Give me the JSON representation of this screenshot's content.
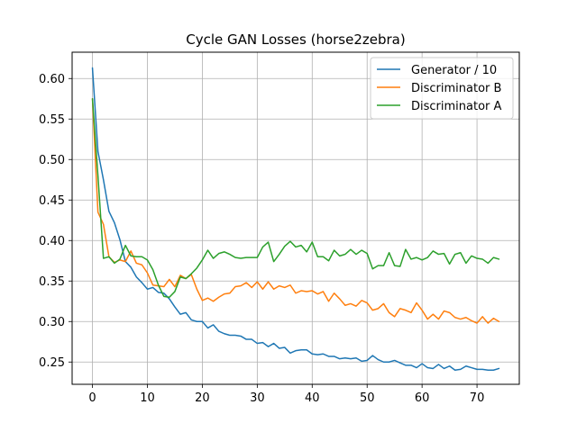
{
  "chart_data": {
    "type": "line",
    "title": "Cycle GAN Losses (horse2zebra)",
    "xlabel": "",
    "ylabel": "",
    "xlim": [
      -3.7,
      77.7
    ],
    "ylim": [
      0.2225,
      0.6325
    ],
    "xticks": [
      0,
      10,
      20,
      30,
      40,
      50,
      60,
      70
    ],
    "yticks": [
      0.25,
      0.3,
      0.35,
      0.4,
      0.45,
      0.5,
      0.55,
      0.6
    ],
    "ytick_labels": [
      "0.25",
      "0.30",
      "0.35",
      "0.40",
      "0.45",
      "0.50",
      "0.55",
      "0.60"
    ],
    "grid": true,
    "legend_position": "top-right",
    "series": [
      {
        "name": "Generator / 10",
        "color": "#1f77b4",
        "values": [
          0.613,
          0.51,
          0.475,
          0.436,
          0.422,
          0.401,
          0.374,
          0.367,
          0.355,
          0.348,
          0.34,
          0.342,
          0.336,
          0.335,
          0.328,
          0.318,
          0.309,
          0.311,
          0.302,
          0.3,
          0.3,
          0.292,
          0.296,
          0.288,
          0.285,
          0.283,
          0.283,
          0.282,
          0.278,
          0.278,
          0.273,
          0.274,
          0.269,
          0.273,
          0.267,
          0.268,
          0.261,
          0.264,
          0.265,
          0.265,
          0.26,
          0.259,
          0.26,
          0.257,
          0.257,
          0.254,
          0.255,
          0.254,
          0.255,
          0.251,
          0.252,
          0.258,
          0.253,
          0.25,
          0.25,
          0.252,
          0.249,
          0.246,
          0.246,
          0.243,
          0.248,
          0.243,
          0.242,
          0.247,
          0.242,
          0.245,
          0.24,
          0.241,
          0.245,
          0.243,
          0.241,
          0.241,
          0.24,
          0.24,
          0.242
        ]
      },
      {
        "name": "Discriminator B",
        "color": "#ff7f0e",
        "values": [
          0.575,
          0.435,
          0.42,
          0.38,
          0.373,
          0.376,
          0.374,
          0.387,
          0.372,
          0.37,
          0.36,
          0.345,
          0.344,
          0.343,
          0.352,
          0.343,
          0.357,
          0.353,
          0.358,
          0.34,
          0.326,
          0.329,
          0.325,
          0.33,
          0.334,
          0.335,
          0.343,
          0.344,
          0.348,
          0.342,
          0.349,
          0.34,
          0.349,
          0.34,
          0.344,
          0.342,
          0.345,
          0.335,
          0.338,
          0.337,
          0.338,
          0.334,
          0.337,
          0.325,
          0.335,
          0.328,
          0.32,
          0.322,
          0.319,
          0.326,
          0.323,
          0.314,
          0.316,
          0.322,
          0.311,
          0.306,
          0.316,
          0.314,
          0.311,
          0.323,
          0.314,
          0.303,
          0.309,
          0.303,
          0.313,
          0.311,
          0.305,
          0.303,
          0.305,
          0.301,
          0.298,
          0.306,
          0.298,
          0.304,
          0.3
        ]
      },
      {
        "name": "Discriminator A",
        "color": "#2ca02c",
        "values": [
          0.575,
          0.48,
          0.378,
          0.38,
          0.372,
          0.377,
          0.394,
          0.381,
          0.38,
          0.38,
          0.376,
          0.364,
          0.345,
          0.331,
          0.33,
          0.337,
          0.355,
          0.353,
          0.359,
          0.366,
          0.376,
          0.388,
          0.378,
          0.384,
          0.386,
          0.383,
          0.379,
          0.378,
          0.379,
          0.379,
          0.379,
          0.392,
          0.398,
          0.374,
          0.383,
          0.393,
          0.399,
          0.392,
          0.394,
          0.386,
          0.398,
          0.38,
          0.38,
          0.375,
          0.388,
          0.381,
          0.383,
          0.389,
          0.383,
          0.388,
          0.384,
          0.365,
          0.369,
          0.369,
          0.385,
          0.369,
          0.368,
          0.389,
          0.377,
          0.379,
          0.376,
          0.379,
          0.387,
          0.383,
          0.384,
          0.371,
          0.383,
          0.385,
          0.372,
          0.381,
          0.378,
          0.377,
          0.372,
          0.379,
          0.377
        ]
      }
    ]
  }
}
